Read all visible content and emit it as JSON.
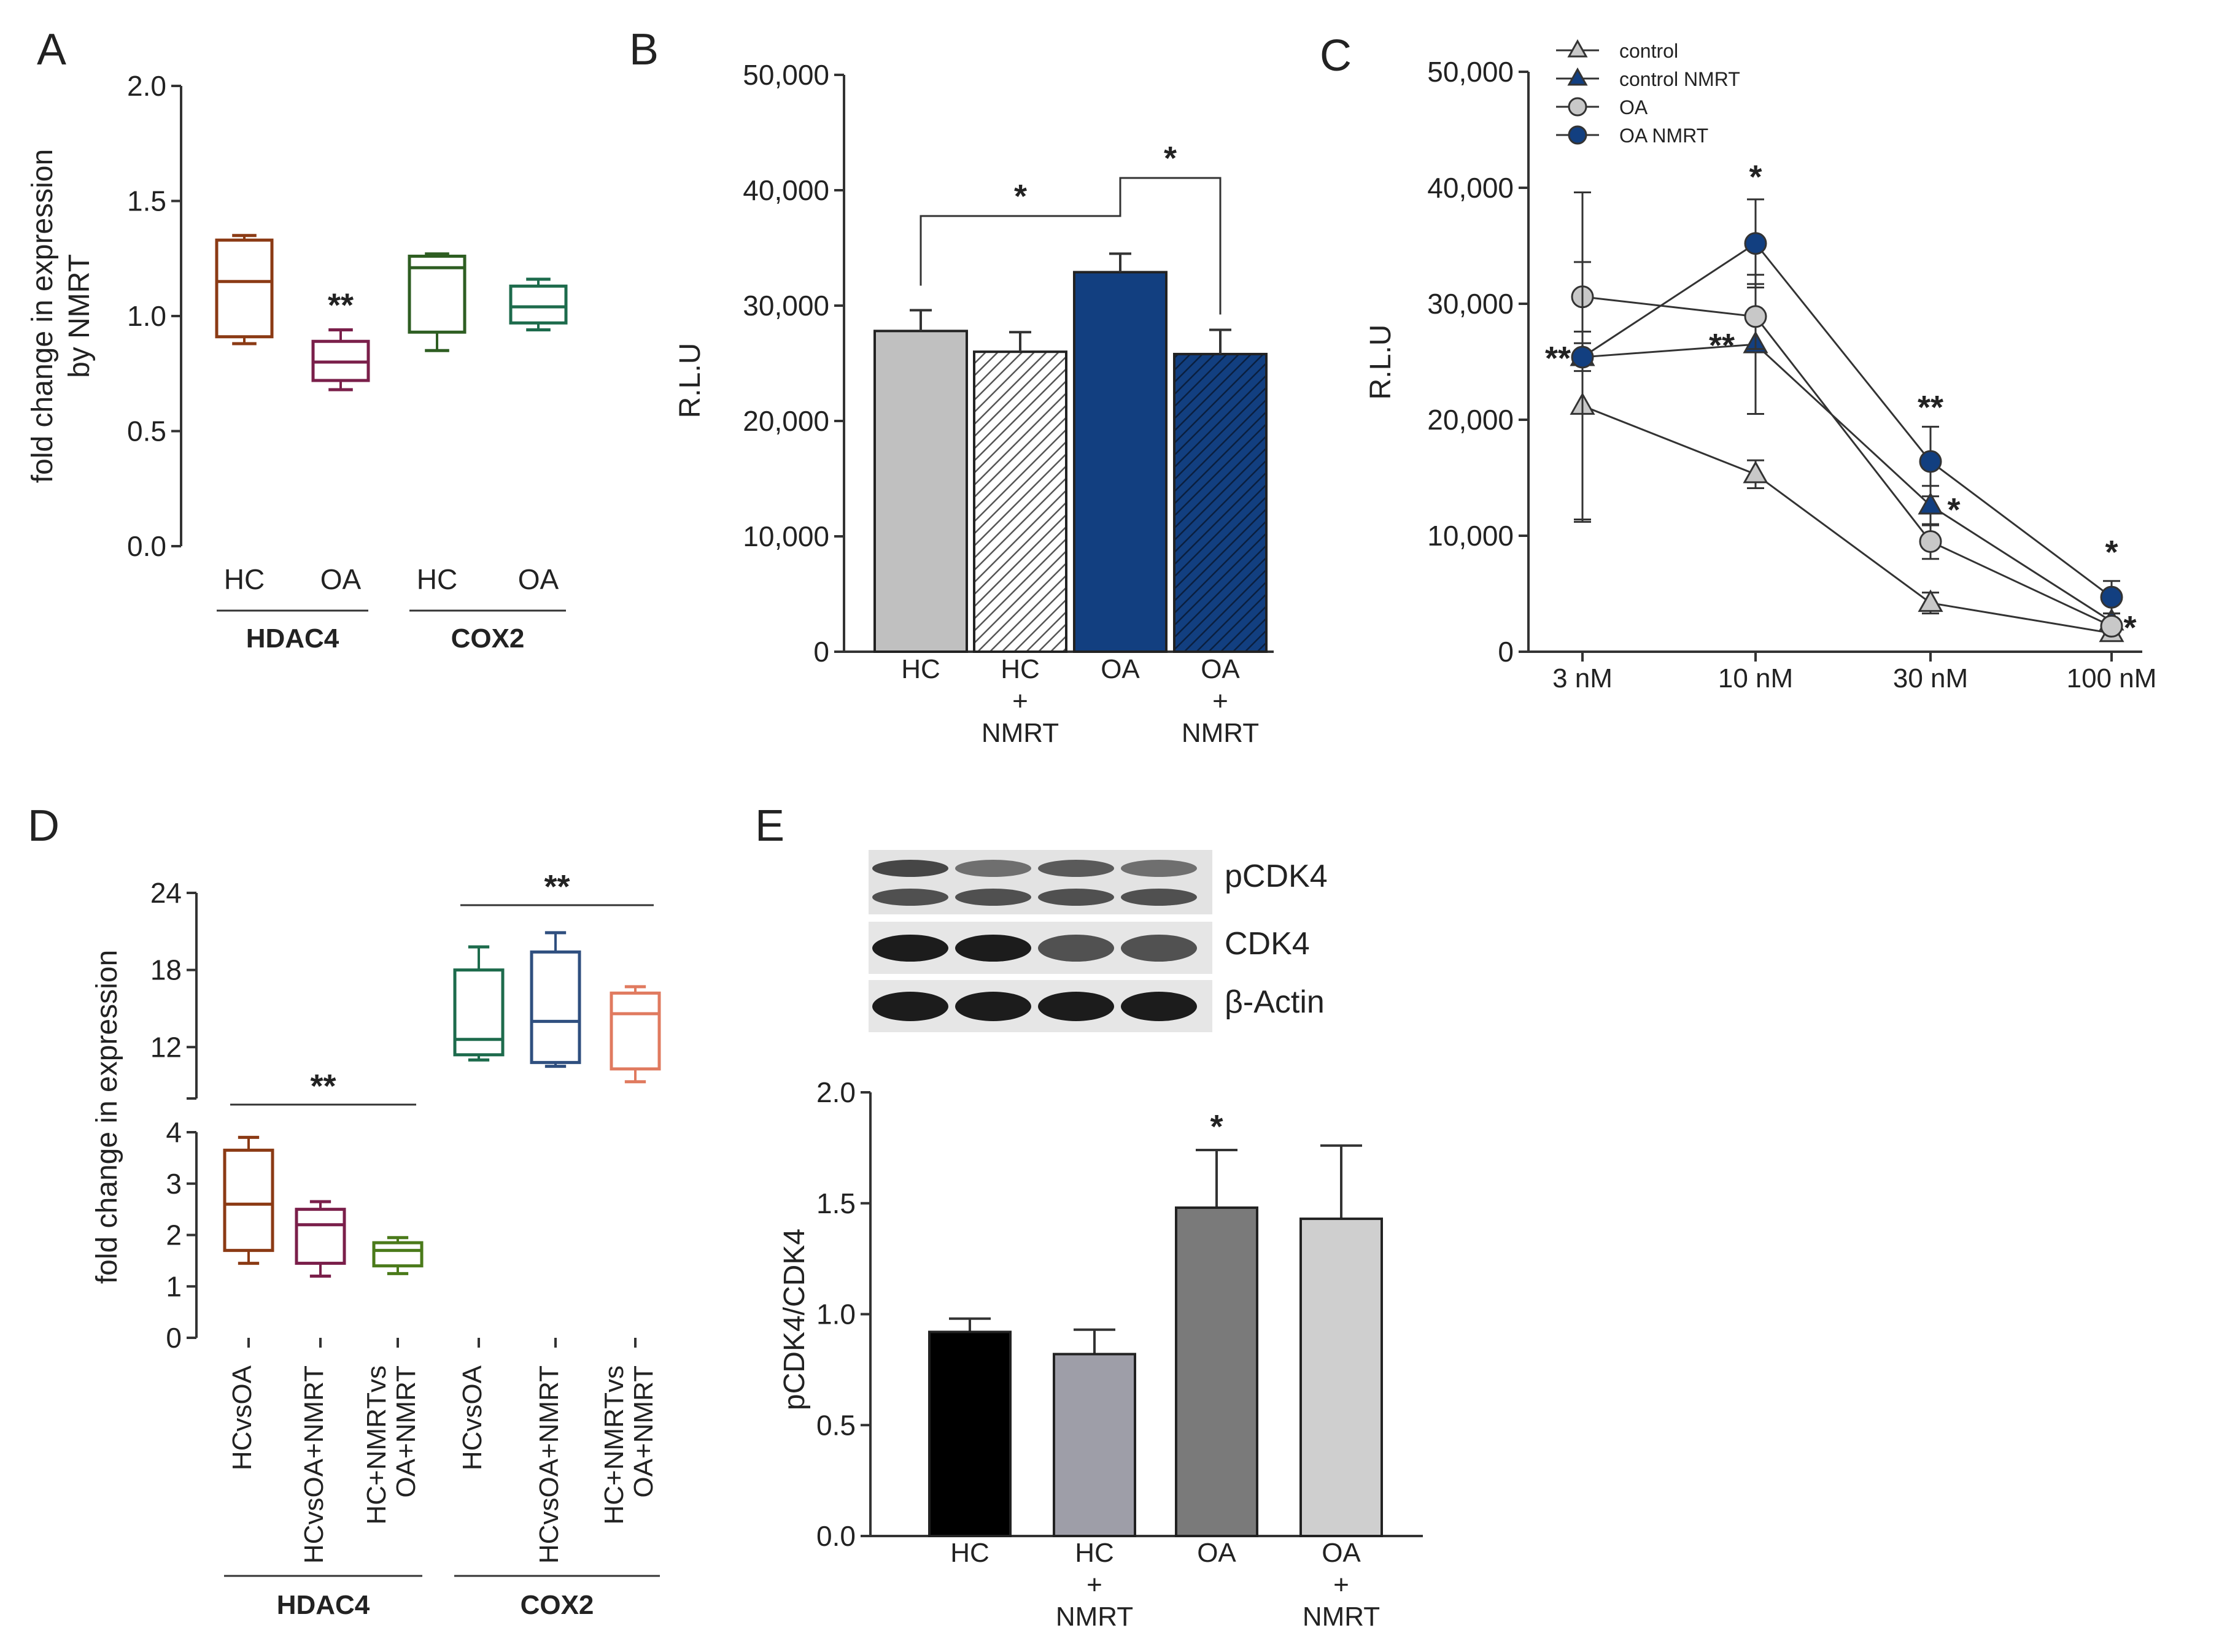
{
  "panels": {
    "A": {
      "label": "A",
      "chart_data": {
        "type": "box",
        "ylabel": "fold change in expression by NMRT",
        "ylabel_lines": [
          "fold change in expression",
          "by NMRT"
        ],
        "ylim": [
          0,
          2.0
        ],
        "yticks": [
          "0.0",
          "0.5",
          "1.0",
          "1.5",
          "2.0"
        ],
        "ytick_values": [
          0,
          0.5,
          1.0,
          1.5,
          2.0
        ],
        "categories": [
          "HC",
          "OA",
          "HC",
          "OA"
        ],
        "groups": [
          {
            "name": "HDAC4",
            "span": [
              0,
              1
            ]
          },
          {
            "name": "COX2",
            "span": [
              2,
              3
            ]
          }
        ],
        "boxes": [
          {
            "min": 0.88,
            "q1": 0.91,
            "median": 1.15,
            "q3": 1.33,
            "max": 1.35,
            "color": "#8b3a14"
          },
          {
            "min": 0.68,
            "q1": 0.72,
            "median": 0.8,
            "q3": 0.89,
            "max": 0.94,
            "color": "#7a1f4a",
            "annotation": "**"
          },
          {
            "min": 0.85,
            "q1": 0.93,
            "median": 1.21,
            "q3": 1.26,
            "max": 1.27,
            "color": "#2e5e22"
          },
          {
            "min": 0.94,
            "q1": 0.97,
            "median": 1.04,
            "q3": 1.13,
            "max": 1.16,
            "color": "#1d6b4c"
          }
        ]
      }
    },
    "B": {
      "label": "B",
      "chart_data": {
        "type": "bar",
        "ylabel": "R.L.U",
        "ylim": [
          0,
          50000
        ],
        "yticks": [
          "0",
          "10,000",
          "20,000",
          "30,000",
          "40,000",
          "50,000"
        ],
        "ytick_values": [
          0,
          10000,
          20000,
          30000,
          40000,
          50000
        ],
        "categories": [
          [
            "HC"
          ],
          [
            "HC",
            "+",
            "NMRT"
          ],
          [
            "OA"
          ],
          [
            "OA",
            "+",
            "NMRT"
          ]
        ],
        "values": [
          27800,
          26000,
          32900,
          25800
        ],
        "errors": [
          1800,
          1700,
          1600,
          2100
        ],
        "colors": [
          "#c0c0c0",
          "#a8a8a8",
          "#123f80",
          "#123f80"
        ],
        "hatched": [
          false,
          true,
          false,
          true
        ],
        "comparisons": [
          {
            "from": 0,
            "to": 2,
            "label": "*"
          },
          {
            "from": 2,
            "to": 3,
            "label": "*"
          }
        ]
      }
    },
    "C": {
      "label": "C",
      "chart_data": {
        "type": "line",
        "ylabel": "R.L.U",
        "ylim": [
          0,
          50000
        ],
        "yticks": [
          "0",
          "10,000",
          "20,000",
          "30,000",
          "40,000",
          "50,000"
        ],
        "ytick_values": [
          0,
          10000,
          20000,
          30000,
          40000,
          50000
        ],
        "x": [
          "3 nM",
          "10 nM",
          "30 nM",
          "100 nM"
        ],
        "legend_position": "top-left",
        "series": [
          {
            "name": "control",
            "marker": "triangle",
            "color": "#c8c8c8",
            "values": [
              21200,
              15300,
              4200,
              1600
            ],
            "errors": [
              9800,
              1200,
              900,
              600
            ],
            "annotations": [
              "",
              "",
              "",
              ""
            ]
          },
          {
            "name": "control NMRT",
            "marker": "triangle",
            "color": "#123f80",
            "values": [
              25400,
              26500,
              12600,
              2600
            ],
            "errors": [
              1200,
              6000,
              1700,
              700
            ],
            "annotations": [
              "**",
              "**",
              "*",
              "*"
            ]
          },
          {
            "name": "OA",
            "marker": "circle",
            "color": "#c8c8c8",
            "values": [
              30600,
              28900,
              9500,
              2200
            ],
            "errors": [
              3000,
              2800,
              1500,
              600
            ],
            "annotations": [
              "",
              "",
              "",
              ""
            ]
          },
          {
            "name": "OA NMRT",
            "marker": "circle",
            "color": "#123f80",
            "values": [
              25400,
              35200,
              16400,
              4700
            ],
            "errors": [
              14200,
              3800,
              3000,
              1400
            ],
            "annotations": [
              "",
              "*",
              "**",
              "*"
            ]
          }
        ]
      }
    },
    "D": {
      "label": "D",
      "chart_data": {
        "type": "box",
        "ylabel": "fold change in expression",
        "broken_axis": true,
        "ylim_lower": [
          0,
          4
        ],
        "yticks_lower": [
          "0",
          "1",
          "2",
          "3",
          "4"
        ],
        "ytick_values_lower": [
          0,
          1,
          2,
          3,
          4
        ],
        "ylim_upper": [
          8,
          24
        ],
        "yticks_upper": [
          "12",
          "18",
          "24"
        ],
        "ytick_values_upper": [
          12,
          18,
          24
        ],
        "categories": [
          [
            "HCvsOA"
          ],
          [
            "HCvsOA+NMRT"
          ],
          [
            "HC+NMRTvs",
            "OA+NMRT"
          ],
          [
            "HCvsOA"
          ],
          [
            "HCvsOA+NMRT"
          ],
          [
            "HC+NMRTvs",
            "OA+NMRT"
          ]
        ],
        "groups": [
          {
            "name": "HDAC4",
            "span": [
              0,
              2
            ]
          },
          {
            "name": "COX2",
            "span": [
              3,
              5
            ]
          }
        ],
        "comparisons": [
          {
            "from": 0,
            "to": 2,
            "label": "**"
          },
          {
            "from": 3,
            "to": 5,
            "label": "**"
          }
        ],
        "boxes": [
          {
            "min": 1.45,
            "q1": 1.7,
            "median": 2.6,
            "q3": 3.65,
            "max": 3.9,
            "color": "#8b3a14"
          },
          {
            "min": 1.2,
            "q1": 1.45,
            "median": 2.2,
            "q3": 2.5,
            "max": 2.65,
            "color": "#7a1f4a"
          },
          {
            "min": 1.25,
            "q1": 1.4,
            "median": 1.7,
            "q3": 1.85,
            "max": 1.95,
            "color": "#4a7a1a"
          },
          {
            "min": 11.0,
            "q1": 11.4,
            "median": 12.6,
            "q3": 18.0,
            "max": 19.8,
            "color": "#1d6b4c"
          },
          {
            "min": 10.5,
            "q1": 10.8,
            "median": 14.0,
            "q3": 19.4,
            "max": 20.9,
            "color": "#2f4f7f"
          },
          {
            "min": 9.3,
            "q1": 10.3,
            "median": 14.6,
            "q3": 16.2,
            "max": 16.7,
            "color": "#e07a5f"
          }
        ]
      }
    },
    "E": {
      "label": "E",
      "blot": {
        "bands": [
          "pCDK4",
          "CDK4",
          "β-Actin"
        ]
      },
      "chart_data": {
        "type": "bar",
        "ylabel": "pCDK4/CDK4",
        "ylim": [
          0,
          2.0
        ],
        "yticks": [
          "0.0",
          "0.5",
          "1.0",
          "1.5",
          "2.0"
        ],
        "ytick_values": [
          0,
          0.5,
          1.0,
          1.5,
          2.0
        ],
        "categories": [
          [
            "HC"
          ],
          [
            "HC",
            "+",
            "NMRT"
          ],
          [
            "OA"
          ],
          [
            "OA",
            "+",
            "NMRT"
          ]
        ],
        "values": [
          0.92,
          0.82,
          1.48,
          1.43
        ],
        "errors": [
          0.06,
          0.11,
          0.26,
          0.33
        ],
        "colors": [
          "#000000",
          "#9e9ea8",
          "#7a7a7a",
          "#cfcfcf"
        ],
        "annotations": [
          "",
          "",
          "*",
          ""
        ]
      }
    }
  }
}
